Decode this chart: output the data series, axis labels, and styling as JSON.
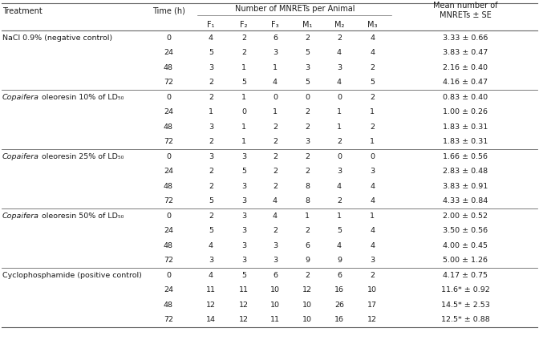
{
  "mnrets_header": "Number of MNRETs per Animal",
  "subheaders": [
    "F₁",
    "F₂",
    "F₃",
    "M₁",
    "M₂",
    "M₃"
  ],
  "rows": [
    {
      "treatment": "NaCl 0.9% (negative control)",
      "italic": false,
      "time": "0",
      "vals": [
        "4",
        "2",
        "6",
        "2",
        "2",
        "4"
      ],
      "mean": "3.33 ± 0.66"
    },
    {
      "treatment": "",
      "italic": false,
      "time": "24",
      "vals": [
        "5",
        "2",
        "3",
        "5",
        "4",
        "4"
      ],
      "mean": "3.83 ± 0.47"
    },
    {
      "treatment": "",
      "italic": false,
      "time": "48",
      "vals": [
        "3",
        "1",
        "1",
        "3",
        "3",
        "2"
      ],
      "mean": "2.16 ± 0.40"
    },
    {
      "treatment": "",
      "italic": false,
      "time": "72",
      "vals": [
        "2",
        "5",
        "4",
        "5",
        "4",
        "5"
      ],
      "mean": "4.16 ± 0.47"
    },
    {
      "treatment": "Copaifera oleoresin 10% of LD₅₀",
      "italic": true,
      "time": "0",
      "vals": [
        "2",
        "1",
        "0",
        "0",
        "0",
        "2"
      ],
      "mean": "0.83 ± 0.40"
    },
    {
      "treatment": "",
      "italic": false,
      "time": "24",
      "vals": [
        "1",
        "0",
        "1",
        "2",
        "1",
        "1"
      ],
      "mean": "1.00 ± 0.26"
    },
    {
      "treatment": "",
      "italic": false,
      "time": "48",
      "vals": [
        "3",
        "1",
        "2",
        "2",
        "1",
        "2"
      ],
      "mean": "1.83 ± 0.31"
    },
    {
      "treatment": "",
      "italic": false,
      "time": "72",
      "vals": [
        "2",
        "1",
        "2",
        "3",
        "2",
        "1"
      ],
      "mean": "1.83 ± 0.31"
    },
    {
      "treatment": "Copaifera oleoresin 25% of LD₅₀",
      "italic": true,
      "time": "0",
      "vals": [
        "3",
        "3",
        "2",
        "2",
        "0",
        "0"
      ],
      "mean": "1.66 ± 0.56"
    },
    {
      "treatment": "",
      "italic": false,
      "time": "24",
      "vals": [
        "2",
        "5",
        "2",
        "2",
        "3",
        "3"
      ],
      "mean": "2.83 ± 0.48"
    },
    {
      "treatment": "",
      "italic": false,
      "time": "48",
      "vals": [
        "2",
        "3",
        "2",
        "8",
        "4",
        "4"
      ],
      "mean": "3.83 ± 0.91"
    },
    {
      "treatment": "",
      "italic": false,
      "time": "72",
      "vals": [
        "5",
        "3",
        "4",
        "8",
        "2",
        "4"
      ],
      "mean": "4.33 ± 0.84"
    },
    {
      "treatment": "Copaifera oleoresin 50% of LD₅₀",
      "italic": true,
      "time": "0",
      "vals": [
        "2",
        "3",
        "4",
        "1",
        "1",
        "1"
      ],
      "mean": "2.00 ± 0.52"
    },
    {
      "treatment": "",
      "italic": false,
      "time": "24",
      "vals": [
        "5",
        "3",
        "2",
        "2",
        "5",
        "4"
      ],
      "mean": "3.50 ± 0.56"
    },
    {
      "treatment": "",
      "italic": false,
      "time": "48",
      "vals": [
        "4",
        "3",
        "3",
        "6",
        "4",
        "4"
      ],
      "mean": "4.00 ± 0.45"
    },
    {
      "treatment": "",
      "italic": false,
      "time": "72",
      "vals": [
        "3",
        "3",
        "3",
        "9",
        "9",
        "3"
      ],
      "mean": "5.00 ± 1.26"
    },
    {
      "treatment": "Cyclophosphamide (positive control)",
      "italic": false,
      "time": "0",
      "vals": [
        "4",
        "5",
        "6",
        "2",
        "6",
        "2"
      ],
      "mean": "4.17 ± 0.75"
    },
    {
      "treatment": "",
      "italic": false,
      "time": "24",
      "vals": [
        "11",
        "11",
        "10",
        "12",
        "16",
        "10"
      ],
      "mean": "11.6* ± 0.92"
    },
    {
      "treatment": "",
      "italic": false,
      "time": "48",
      "vals": [
        "12",
        "12",
        "10",
        "10",
        "26",
        "17"
      ],
      "mean": "14.5* ± 2.53"
    },
    {
      "treatment": "",
      "italic": false,
      "time": "72",
      "vals": [
        "14",
        "12",
        "11",
        "10",
        "16",
        "12"
      ],
      "mean": "12.5* ± 0.88"
    }
  ],
  "group_separators_after": [
    3,
    7,
    11,
    15
  ],
  "background_color": "#ffffff",
  "text_color": "#1a1a1a",
  "line_color": "#666666",
  "fs": 6.8,
  "hfs": 7.0
}
